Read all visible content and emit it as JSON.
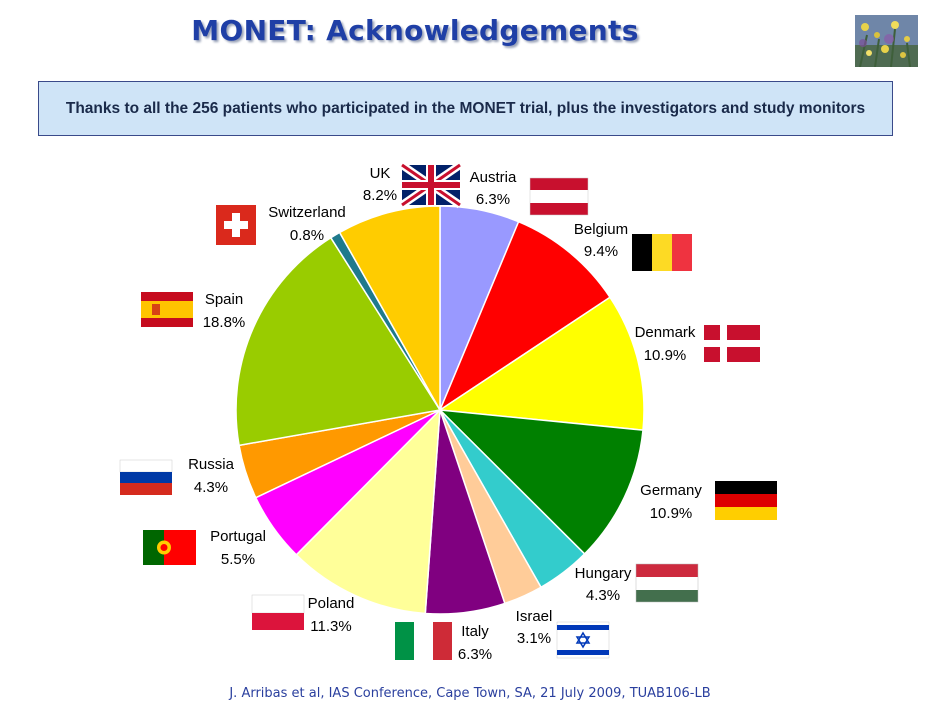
{
  "title": "MONET: Acknowledgements",
  "banner": "Thanks to all the 256 patients who participated in the MONET trial, plus the investigators and study monitors",
  "footer": "J. Arribas et al, IAS Conference, Cape Town, SA, 21 July 2009, TUAB106-LB",
  "chart_data": {
    "type": "pie",
    "start": "12 o'clock",
    "direction": "clockwise",
    "slices": [
      {
        "label": "Austria",
        "pct_label": "6.3%",
        "value": 6.3,
        "color": "#9999ff"
      },
      {
        "label": "Belgium",
        "pct_label": "9.4%",
        "value": 9.4,
        "color": "#ff0000"
      },
      {
        "label": "Denmark",
        "pct_label": "10.9%",
        "value": 10.9,
        "color": "#ffff00"
      },
      {
        "label": "Germany",
        "pct_label": "10.9%",
        "value": 10.9,
        "color": "#008000"
      },
      {
        "label": "Hungary",
        "pct_label": "4.3%",
        "value": 4.3,
        "color": "#33cccc"
      },
      {
        "label": "Israel",
        "pct_label": "3.1%",
        "value": 3.1,
        "color": "#ffcc99"
      },
      {
        "label": "Italy",
        "pct_label": "6.3%",
        "value": 6.3,
        "color": "#800080"
      },
      {
        "label": "Poland",
        "pct_label": "11.3%",
        "value": 11.3,
        "color": "#ffff99"
      },
      {
        "label": "Portugal",
        "pct_label": "5.5%",
        "value": 5.5,
        "color": "#ff00ff"
      },
      {
        "label": "Russia",
        "pct_label": "4.3%",
        "value": 4.3,
        "color": "#ff9900"
      },
      {
        "label": "Spain",
        "pct_label": "18.8%",
        "value": 18.8,
        "color": "#99cc00"
      },
      {
        "label": "Switzerland",
        "pct_label": "0.8%",
        "value": 0.8,
        "color": "#1f7a8c"
      },
      {
        "label": "UK",
        "pct_label": "8.2%",
        "value": 8.2,
        "color": "#ffcc00"
      }
    ]
  }
}
